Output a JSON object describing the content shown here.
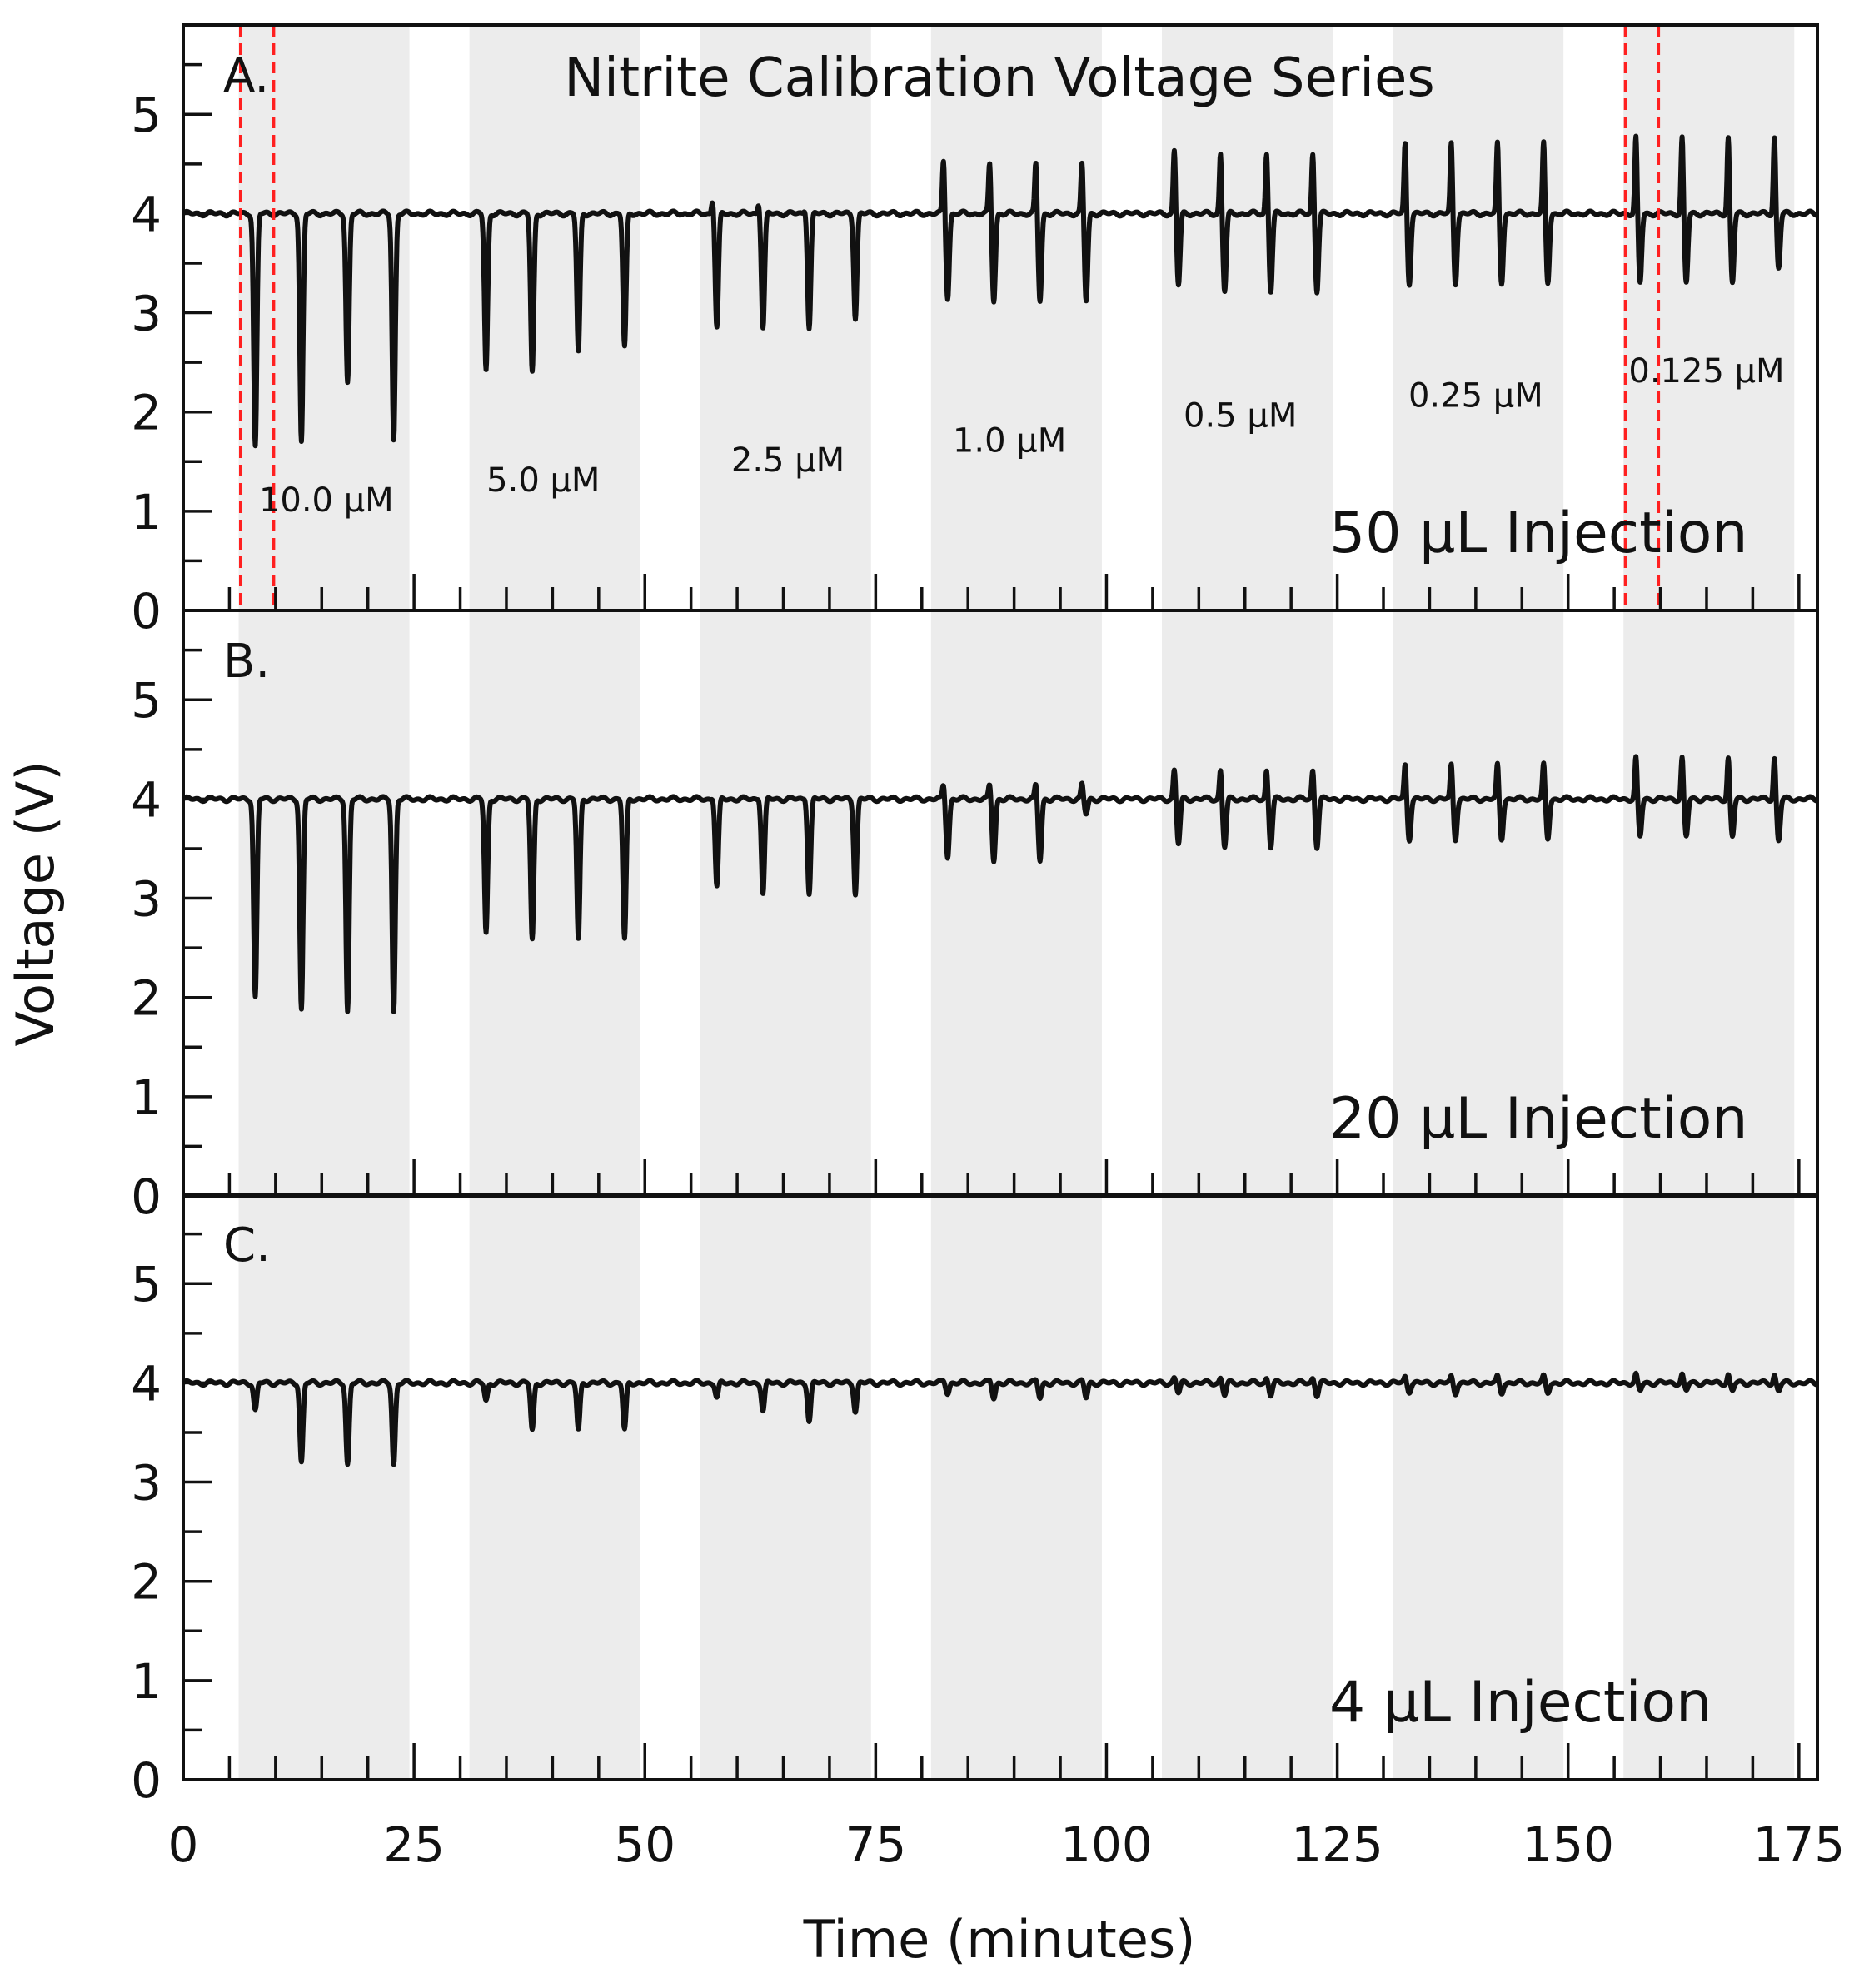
{
  "chart_data": {
    "type": "line",
    "title": "Nitrite Calibration Voltage Series",
    "xlabel": "Time (minutes)",
    "ylabel": "Voltage (V)",
    "xlim": [
      0,
      177
    ],
    "ylim": [
      0,
      5.9
    ],
    "x_ticks": [
      "0",
      "25",
      "50",
      "75",
      "100",
      "125",
      "150",
      "175"
    ],
    "y_ticks": [
      "0",
      "1",
      "2",
      "3",
      "4",
      "5"
    ],
    "baseline_v": 4.0,
    "shaded_bands": [
      {
        "label": "10.0 µM",
        "start": 6,
        "end": 24.5,
        "label_x": 15.5,
        "label_y": 1.0
      },
      {
        "label": "5.0 µM",
        "start": 31,
        "end": 49.5,
        "label_x": 39,
        "label_y": 1.2
      },
      {
        "label": "2.5 µM",
        "start": 56,
        "end": 74.5,
        "label_x": 65.5,
        "label_y": 1.4
      },
      {
        "label": "1.0 µM",
        "start": 81,
        "end": 99.5,
        "label_x": 89.5,
        "label_y": 1.6
      },
      {
        "label": "0.5 µM",
        "start": 106,
        "end": 124.5,
        "label_x": 114.5,
        "label_y": 1.85
      },
      {
        "label": "0.25 µM",
        "start": 131,
        "end": 149.5,
        "label_x": 140,
        "label_y": 2.05
      },
      {
        "label": "0.125 µM",
        "start": 156,
        "end": 174.5,
        "label_x": 165,
        "label_y": 2.3
      }
    ],
    "injection_times": [
      [
        7.8,
        12.8,
        17.8,
        22.8
      ],
      [
        32.8,
        37.8,
        42.8,
        47.8
      ],
      [
        57.8,
        62.8,
        67.8,
        72.8
      ],
      [
        82.8,
        87.8,
        92.8,
        97.8
      ],
      [
        107.8,
        112.8,
        117.8,
        122.8
      ],
      [
        132.8,
        137.8,
        142.8,
        147.8
      ],
      [
        157.8,
        162.8,
        167.8,
        172.8
      ]
    ],
    "panels": [
      {
        "label": "A.",
        "injection_label": "50 µL Injection",
        "show_title": true,
        "show_conc_labels": true,
        "dashed_markers": [
          6.2,
          9.8,
          156.2,
          159.8
        ],
        "trough_minima_v": [
          [
            1.65,
            1.7,
            2.3,
            1.72
          ],
          [
            2.42,
            2.4,
            2.6,
            2.65
          ],
          [
            2.85,
            2.85,
            2.85,
            2.95
          ],
          [
            3.15,
            3.12,
            3.12,
            3.12
          ],
          [
            3.28,
            3.22,
            3.22,
            3.22
          ],
          [
            3.3,
            3.3,
            3.3,
            3.3
          ],
          [
            3.3,
            3.3,
            3.3,
            3.45
          ]
        ],
        "peak_maxima_v": [
          [
            4.0,
            4.0,
            4.0,
            4.0
          ],
          [
            4.0,
            4.0,
            4.0,
            4.0
          ],
          [
            4.15,
            4.12,
            4.05,
            4.0
          ],
          [
            4.55,
            4.52,
            4.52,
            4.52
          ],
          [
            4.65,
            4.62,
            4.62,
            4.62
          ],
          [
            4.72,
            4.72,
            4.72,
            4.72
          ],
          [
            4.78,
            4.78,
            4.78,
            4.78
          ]
        ]
      },
      {
        "label": "B.",
        "injection_label": "20 µL Injection",
        "show_title": false,
        "show_conc_labels": false,
        "dashed_markers": [],
        "trough_minima_v": [
          [
            2.0,
            1.88,
            1.86,
            1.86
          ],
          [
            2.65,
            2.58,
            2.58,
            2.58
          ],
          [
            3.12,
            3.05,
            3.05,
            3.05
          ],
          [
            3.42,
            3.38,
            3.38,
            3.85
          ],
          [
            3.55,
            3.52,
            3.52,
            3.52
          ],
          [
            3.6,
            3.6,
            3.6,
            3.6
          ],
          [
            3.62,
            3.62,
            3.62,
            3.58
          ]
        ],
        "peak_maxima_v": [
          [
            4.0,
            4.0,
            4.0,
            4.0
          ],
          [
            4.0,
            4.0,
            4.0,
            4.0
          ],
          [
            4.02,
            4.02,
            4.02,
            4.0
          ],
          [
            4.15,
            4.15,
            4.15,
            4.15
          ],
          [
            4.3,
            4.3,
            4.3,
            4.3
          ],
          [
            4.35,
            4.35,
            4.35,
            4.35
          ],
          [
            4.42,
            4.42,
            4.42,
            4.42
          ]
        ]
      },
      {
        "label": "C.",
        "injection_label": "4 µL Injection",
        "show_title": false,
        "show_conc_labels": false,
        "dashed_markers": [],
        "trough_minima_v": [
          [
            3.72,
            3.2,
            3.18,
            3.18
          ],
          [
            3.82,
            3.52,
            3.52,
            3.52
          ],
          [
            3.85,
            3.72,
            3.62,
            3.72
          ],
          [
            3.9,
            3.85,
            3.85,
            3.85
          ],
          [
            3.9,
            3.88,
            3.88,
            3.88
          ],
          [
            3.92,
            3.9,
            3.9,
            3.9
          ],
          [
            3.92,
            3.92,
            3.92,
            3.92
          ]
        ],
        "peak_maxima_v": [
          [
            4.0,
            4.0,
            4.0,
            4.0
          ],
          [
            4.0,
            4.0,
            4.0,
            4.0
          ],
          [
            4.0,
            4.0,
            4.0,
            4.0
          ],
          [
            4.02,
            4.02,
            4.02,
            4.02
          ],
          [
            4.05,
            4.05,
            4.05,
            4.05
          ],
          [
            4.06,
            4.06,
            4.06,
            4.06
          ],
          [
            4.08,
            4.08,
            4.08,
            4.08
          ]
        ]
      }
    ]
  }
}
